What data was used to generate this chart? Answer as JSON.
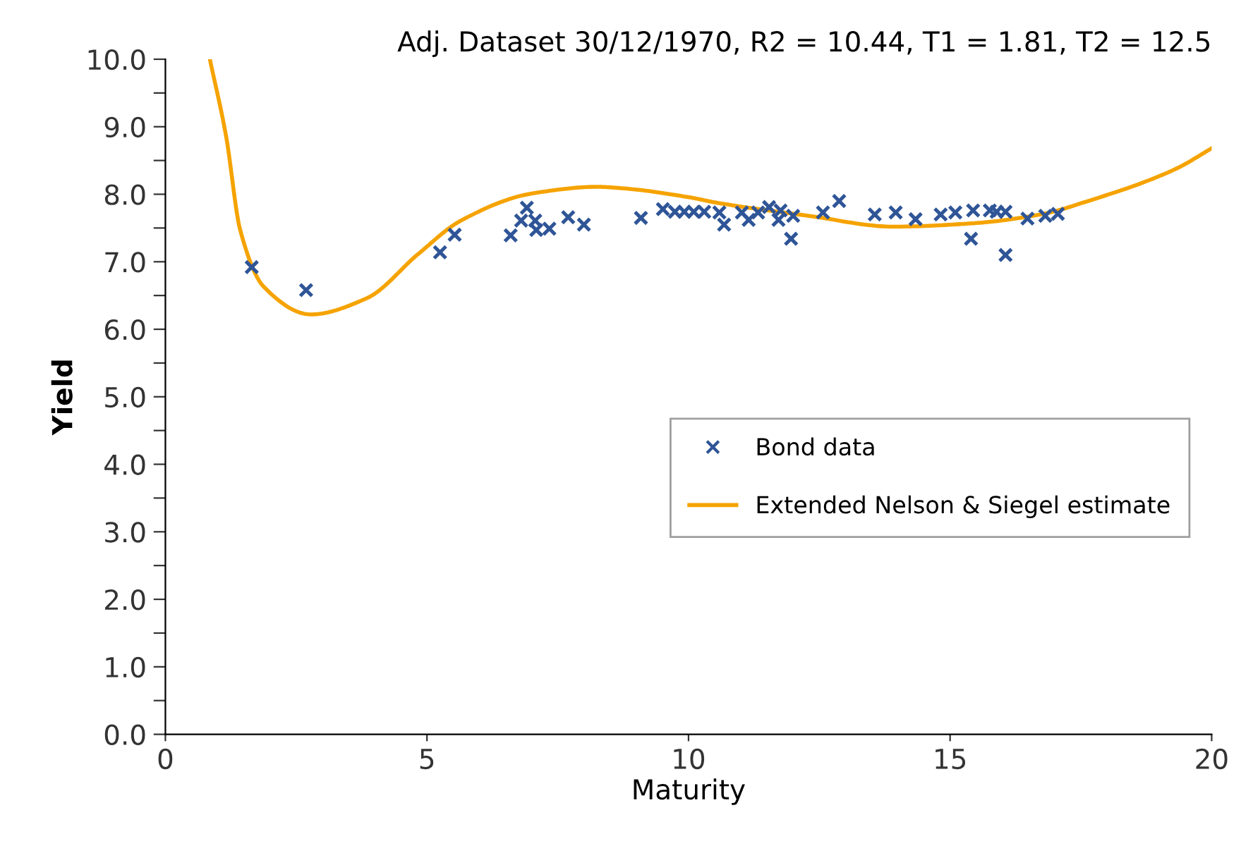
{
  "chart_data": {
    "type": "scatter",
    "title": "Adj. Dataset 30/12/1970, R2 = 10.44, T1 = 1.81, T2 = 12.5",
    "xlabel": "Maturity",
    "ylabel": "Yield",
    "xlim": [
      0,
      20
    ],
    "xticks": [
      0,
      5,
      10,
      15,
      20
    ],
    "ylim": [
      0,
      10
    ],
    "yticks": [
      {
        "value": 0,
        "label": "0.0"
      },
      {
        "value": 0.5,
        "label": null
      },
      {
        "value": 1,
        "label": "1.0"
      },
      {
        "value": 1.5,
        "label": null
      },
      {
        "value": 2,
        "label": "2.0"
      },
      {
        "value": 2.5,
        "label": null
      },
      {
        "value": 3,
        "label": "3.0"
      },
      {
        "value": 3.5,
        "label": null
      },
      {
        "value": 4,
        "label": "4.0"
      },
      {
        "value": 4.5,
        "label": null
      },
      {
        "value": 5,
        "label": "5.0"
      },
      {
        "value": 5.5,
        "label": null
      },
      {
        "value": 6,
        "label": "6.0"
      },
      {
        "value": 6.5,
        "label": null
      },
      {
        "value": 7,
        "label": "7.0"
      },
      {
        "value": 7.5,
        "label": null
      },
      {
        "value": 8,
        "label": "8.0"
      },
      {
        "value": 8.5,
        "label": null
      },
      {
        "value": 9,
        "label": "9.0"
      },
      {
        "value": 9.5,
        "label": null
      },
      {
        "value": 10,
        "label": "10.0"
      }
    ],
    "grid": false,
    "legend": "right",
    "series": [
      {
        "name": "Bond data",
        "marker": "cross",
        "color": "#2f5597",
        "x": [
          1.65,
          2.69,
          5.25,
          5.53,
          6.6,
          6.91,
          6.8,
          7.07,
          7.09,
          7.34,
          7.7,
          8.0,
          9.09,
          9.51,
          9.74,
          9.92,
          10.1,
          10.3,
          10.59,
          10.68,
          11.02,
          11.15,
          11.33,
          11.54,
          11.76,
          11.72,
          12.0,
          11.96,
          12.57,
          12.88,
          13.56,
          13.96,
          14.34,
          14.82,
          15.1,
          15.44,
          15.4,
          15.76,
          15.89,
          16.06,
          16.06,
          16.48,
          16.82,
          17.06
        ],
        "values": [
          6.92,
          6.58,
          7.14,
          7.4,
          7.39,
          7.8,
          7.61,
          7.61,
          7.47,
          7.49,
          7.66,
          7.55,
          7.65,
          7.78,
          7.74,
          7.74,
          7.74,
          7.74,
          7.73,
          7.55,
          7.73,
          7.62,
          7.73,
          7.81,
          7.76,
          7.62,
          7.68,
          7.34,
          7.73,
          7.9,
          7.7,
          7.73,
          7.63,
          7.7,
          7.73,
          7.76,
          7.34,
          7.76,
          7.74,
          7.74,
          7.1,
          7.64,
          7.68,
          7.71
        ]
      },
      {
        "name": "Extended Nelson & Siegel estimate",
        "type": "line",
        "marker": "none",
        "line_style": "solid",
        "color": "#f5a300",
        "x": [
          0.85,
          1.16,
          1.43,
          1.88,
          2.78,
          3.85,
          4.84,
          5.65,
          7.0,
          8.26,
          8.71,
          10.05,
          10.5,
          12.3,
          13.92,
          15.44,
          16.79,
          17.6,
          19.3,
          20.0
        ],
        "values": [
          10.0,
          8.86,
          7.47,
          6.63,
          6.22,
          6.46,
          7.12,
          7.61,
          8.01,
          8.11,
          8.09,
          7.95,
          7.88,
          7.68,
          7.52,
          7.57,
          7.71,
          7.89,
          8.37,
          8.68
        ]
      }
    ]
  }
}
